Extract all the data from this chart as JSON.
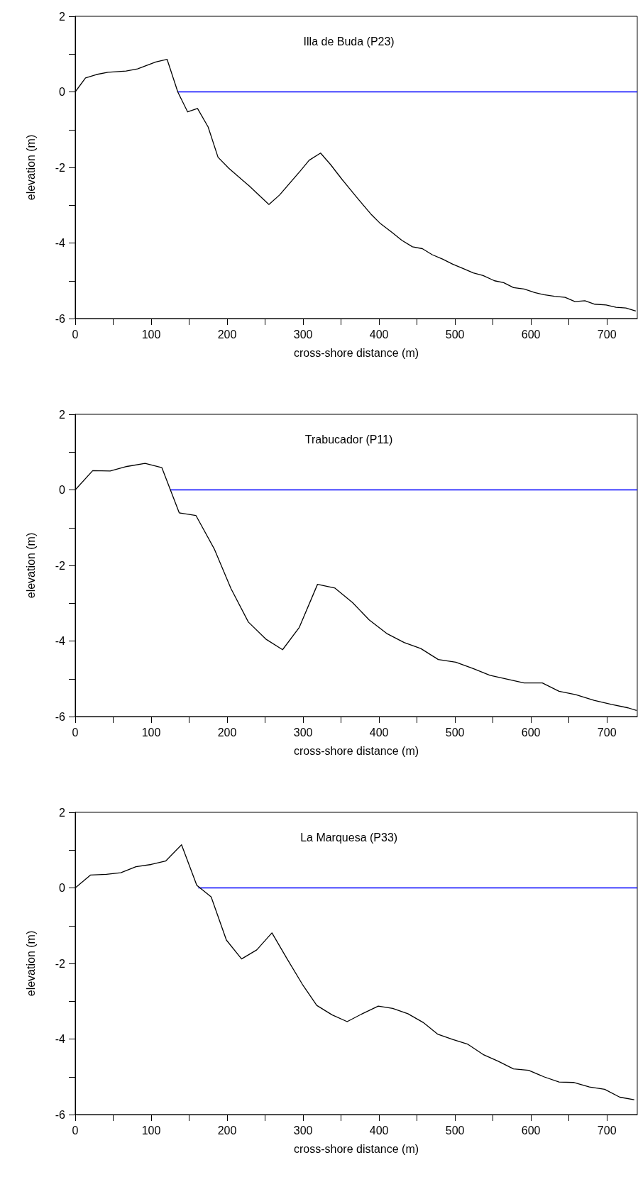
{
  "chart_data": [
    {
      "type": "line",
      "title": "Illa de Buda (P23)",
      "xlabel": "cross-shore distance (m)",
      "ylabel": "elevation (m)",
      "xlim": [
        0,
        740
      ],
      "ylim": [
        -6,
        2
      ],
      "xticks": [
        0,
        {
          "value": 50,
          "label": null
        },
        100,
        {
          "value": 150,
          "label": null
        },
        200,
        {
          "value": 250,
          "label": null
        },
        300,
        {
          "value": 350,
          "label": null
        },
        400,
        {
          "value": 450,
          "label": null
        },
        500,
        {
          "value": 550,
          "label": null
        },
        600,
        {
          "value": 650,
          "label": null
        },
        700
      ],
      "yticks": [
        -6,
        {
          "value": -5,
          "label": null
        },
        -4,
        {
          "value": -3,
          "label": null
        },
        -2,
        {
          "value": -1,
          "label": null
        },
        0,
        {
          "value": 1,
          "label": null
        },
        2
      ],
      "series": [
        {
          "color": "#000000",
          "x": [
            0,
            13.5,
            28,
            43,
            67,
            82,
            106,
            121,
            135,
            148,
            161,
            175,
            188,
            202,
            229,
            255,
            269,
            296,
            308,
            323,
            336,
            351,
            371,
            390,
            402,
            417,
            430,
            444,
            457,
            470,
            484,
            497,
            511,
            524,
            537,
            552,
            564,
            577,
            591,
            605,
            617,
            631,
            645,
            658,
            671,
            684,
            699,
            712,
            725,
            738
          ],
          "values": [
            0,
            0.37,
            0.46,
            0.52,
            0.55,
            0.61,
            0.79,
            0.86,
            0,
            -0.53,
            -0.44,
            -0.93,
            -1.73,
            -2.02,
            -2.49,
            -2.98,
            -2.73,
            -2.1,
            -1.81,
            -1.62,
            -1.92,
            -2.31,
            -2.8,
            -3.25,
            -3.49,
            -3.72,
            -3.93,
            -4.1,
            -4.15,
            -4.31,
            -4.43,
            -4.56,
            -4.68,
            -4.79,
            -4.86,
            -5,
            -5.05,
            -5.18,
            -5.22,
            -5.31,
            -5.37,
            -5.41,
            -5.44,
            -5.55,
            -5.53,
            -5.62,
            -5.64,
            -5.7,
            -5.72,
            -5.8
          ]
        },
        {
          "color": "#0000ff",
          "x": [
            135,
            740
          ],
          "values": [
            0,
            0
          ]
        }
      ]
    },
    {
      "type": "line",
      "title": "Trabucador (P11)",
      "xlabel": "cross-shore distance (m)",
      "ylabel": "elevation (m)",
      "xlim": [
        0,
        740
      ],
      "ylim": [
        -6,
        2
      ],
      "xticks": [
        0,
        {
          "value": 50,
          "label": null
        },
        100,
        {
          "value": 150,
          "label": null
        },
        200,
        {
          "value": 250,
          "label": null
        },
        300,
        {
          "value": 350,
          "label": null
        },
        400,
        {
          "value": 450,
          "label": null
        },
        500,
        {
          "value": 550,
          "label": null
        },
        600,
        {
          "value": 650,
          "label": null
        },
        700
      ],
      "yticks": [
        -6,
        {
          "value": -5,
          "label": null
        },
        -4,
        {
          "value": -3,
          "label": null
        },
        -2,
        {
          "value": -1,
          "label": null
        },
        0,
        {
          "value": 1,
          "label": null
        },
        2
      ],
      "series": [
        {
          "color": "#000000",
          "x": [
            0,
            23,
            46,
            68,
            92,
            114,
            137,
            159,
            183,
            205,
            228,
            251,
            273,
            295,
            319,
            342,
            365,
            387,
            410,
            433,
            455,
            478,
            501,
            524,
            546,
            569,
            591,
            615,
            637,
            659,
            683,
            706,
            728,
            739
          ],
          "values": [
            0,
            0.51,
            0.5,
            0.62,
            0.7,
            0.59,
            -0.61,
            -0.68,
            -1.56,
            -2.61,
            -3.5,
            -3.95,
            -4.23,
            -3.64,
            -2.5,
            -2.6,
            -2.98,
            -3.44,
            -3.8,
            -4.04,
            -4.2,
            -4.49,
            -4.56,
            -4.73,
            -4.91,
            -5.01,
            -5.11,
            -5.11,
            -5.33,
            -5.42,
            -5.57,
            -5.68,
            -5.77,
            -5.84
          ]
        },
        {
          "color": "#0000ff",
          "x": [
            125,
            740
          ],
          "values": [
            0,
            0
          ]
        }
      ]
    },
    {
      "type": "line",
      "title": "La Marquesa (P33)",
      "xlabel": "cross-shore distance (m)",
      "ylabel": "elevation (m)",
      "xlim": [
        0,
        740
      ],
      "ylim": [
        -6,
        2
      ],
      "xticks": [
        0,
        {
          "value": 50,
          "label": null
        },
        100,
        {
          "value": 150,
          "label": null
        },
        200,
        {
          "value": 250,
          "label": null
        },
        300,
        {
          "value": 350,
          "label": null
        },
        400,
        {
          "value": 450,
          "label": null
        },
        500,
        {
          "value": 550,
          "label": null
        },
        600,
        {
          "value": 650,
          "label": null
        },
        700
      ],
      "yticks": [
        -6,
        {
          "value": -5,
          "label": null
        },
        -4,
        {
          "value": -3,
          "label": null
        },
        -2,
        {
          "value": -1,
          "label": null
        },
        0,
        {
          "value": 1,
          "label": null
        },
        2
      ],
      "series": [
        {
          "color": "#000000",
          "x": [
            0,
            20,
            41,
            60,
            80,
            100,
            119,
            140,
            160,
            179,
            199,
            219,
            239,
            259,
            279,
            299,
            318,
            338,
            358,
            378,
            399,
            418,
            438,
            458,
            477,
            497,
            517,
            537,
            557,
            577,
            597,
            617,
            637,
            656,
            677,
            697,
            717,
            736
          ],
          "values": [
            0,
            0.34,
            0.36,
            0.4,
            0.56,
            0.62,
            0.71,
            1.14,
            0.07,
            -0.24,
            -1.38,
            -1.88,
            -1.64,
            -1.19,
            -1.88,
            -2.55,
            -3.11,
            -3.36,
            -3.54,
            -3.33,
            -3.13,
            -3.19,
            -3.33,
            -3.56,
            -3.87,
            -4.01,
            -4.14,
            -4.41,
            -4.59,
            -4.79,
            -4.83,
            -5,
            -5.14,
            -5.15,
            -5.27,
            -5.33,
            -5.54,
            -5.61
          ]
        },
        {
          "color": "#0000ff",
          "x": [
            162,
            740
          ],
          "values": [
            0,
            0
          ]
        }
      ]
    }
  ]
}
